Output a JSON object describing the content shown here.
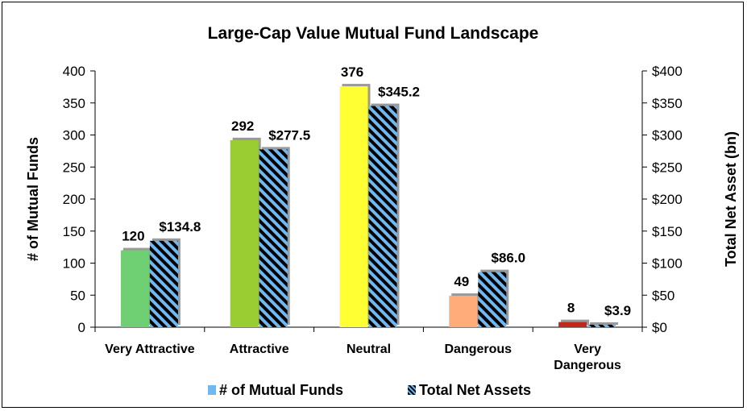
{
  "chart_data": {
    "type": "bar",
    "title": "Large-Cap Value Mutual Fund Landscape",
    "categories": [
      [
        "Very Attractive"
      ],
      [
        "Attractive"
      ],
      [
        "Neutral"
      ],
      [
        "Dangerous"
      ],
      [
        "Very",
        "Dangerous"
      ]
    ],
    "series": [
      {
        "name": "# of Mutual Funds",
        "axis": "left",
        "values": [
          120,
          292,
          376,
          49,
          8
        ],
        "labels": [
          "120",
          "292",
          "376",
          "49",
          "8"
        ],
        "colors": [
          "#6fcf73",
          "#9acd32",
          "#ffff33",
          "#ffab7a",
          "#c0281e"
        ]
      },
      {
        "name": "Total Net Assets",
        "axis": "right",
        "values": [
          134.8,
          277.5,
          345.2,
          86.0,
          3.9
        ],
        "labels": [
          "$134.8",
          "$277.5",
          "$345.2",
          "$86.0",
          "$3.9"
        ],
        "pattern": "diagonal stripes",
        "colors": [
          "#6fb8f2",
          "#000000"
        ]
      }
    ],
    "y_left": {
      "title": "# of Mutual Funds",
      "ylim": [
        0,
        400
      ],
      "ticks": [
        "0",
        "50",
        "100",
        "150",
        "200",
        "250",
        "300",
        "350",
        "400"
      ]
    },
    "y_right": {
      "title": "Total Net Asset (bn)",
      "ylim": [
        0,
        400
      ],
      "ticks": [
        "$0",
        "$50",
        "$100",
        "$150",
        "$200",
        "$250",
        "$300",
        "$350",
        "$400"
      ]
    },
    "grid": false,
    "legend": {
      "position": "bottom",
      "items": [
        "# of Mutual Funds",
        "Total Net Assets"
      ],
      "colors": [
        "#6fb8f2",
        "#000000"
      ]
    }
  }
}
